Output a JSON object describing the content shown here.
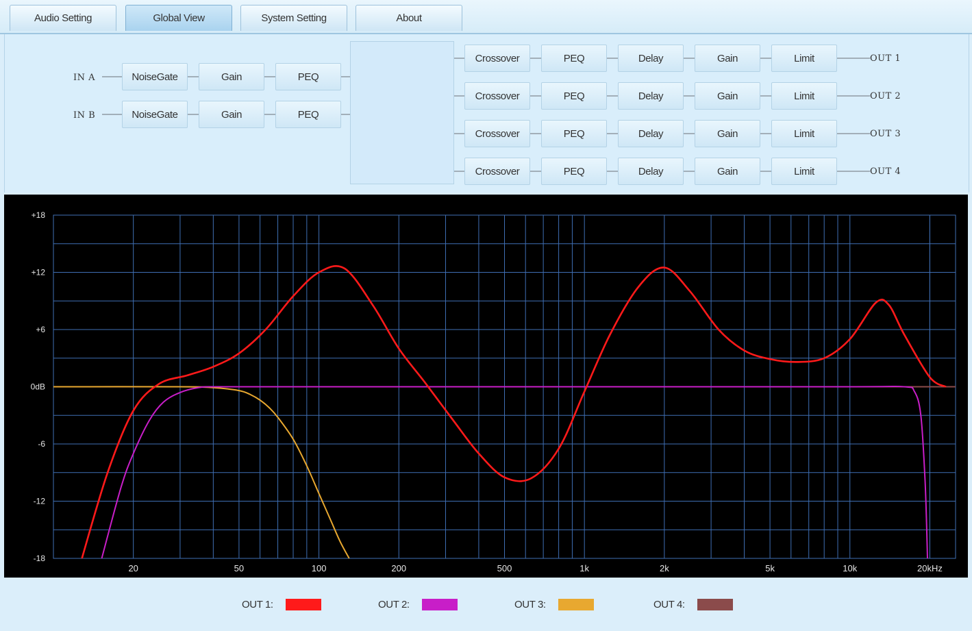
{
  "tabs": [
    {
      "label": "Audio Setting",
      "active": false
    },
    {
      "label": "Global View",
      "active": true
    },
    {
      "label": "System Setting",
      "active": false
    },
    {
      "label": "About",
      "active": false
    }
  ],
  "routing": {
    "inputs": [
      {
        "label": "IN A",
        "blocks": [
          "NoiseGate",
          "Gain",
          "PEQ"
        ]
      },
      {
        "label": "IN B",
        "blocks": [
          "NoiseGate",
          "Gain",
          "PEQ"
        ]
      }
    ],
    "outputs": [
      {
        "label": "OUT 1",
        "blocks": [
          "Crossover",
          "PEQ",
          "Delay",
          "Gain",
          "Limit"
        ]
      },
      {
        "label": "OUT 2",
        "blocks": [
          "Crossover",
          "PEQ",
          "Delay",
          "Gain",
          "Limit"
        ]
      },
      {
        "label": "OUT 3",
        "blocks": [
          "Crossover",
          "PEQ",
          "Delay",
          "Gain",
          "Limit"
        ]
      },
      {
        "label": "OUT 4",
        "blocks": [
          "Crossover",
          "PEQ",
          "Delay",
          "Gain",
          "Limit"
        ]
      }
    ],
    "matrix": {
      "rows": [
        "OUT 1",
        "OUT 2",
        "OUT 3",
        "OUT 4"
      ],
      "routes": [
        "IN A",
        "IN B",
        "IN A",
        "IN B"
      ]
    }
  },
  "chart_data": {
    "type": "line",
    "xscale": "log",
    "xlim": [
      10,
      25000
    ],
    "ylim": [
      -18,
      18
    ],
    "x_ticks": [
      {
        "value": 20,
        "label": "20"
      },
      {
        "value": 50,
        "label": "50"
      },
      {
        "value": 100,
        "label": "100"
      },
      {
        "value": 200,
        "label": "200"
      },
      {
        "value": 500,
        "label": "500"
      },
      {
        "value": 1000,
        "label": "1k"
      },
      {
        "value": 2000,
        "label": "2k"
      },
      {
        "value": 5000,
        "label": "5k"
      },
      {
        "value": 10000,
        "label": "10k"
      },
      {
        "value": 20000,
        "label": "20kHz"
      }
    ],
    "y_ticks": [
      {
        "value": 18,
        "label": "+18"
      },
      {
        "value": 12,
        "label": "+12"
      },
      {
        "value": 6,
        "label": "+6"
      },
      {
        "value": 0,
        "label": "0dB"
      },
      {
        "value": -6,
        "label": "-6"
      },
      {
        "value": -12,
        "label": "-12"
      },
      {
        "value": -18,
        "label": "-18"
      }
    ],
    "grid": true,
    "series": [
      {
        "name": "OUT 1",
        "color": "#ff1a1a",
        "x": [
          12.8,
          16,
          20,
          25,
          32,
          40,
          50,
          63,
          80,
          100,
          125,
          160,
          200,
          250,
          320,
          400,
          500,
          630,
          800,
          1000,
          1250,
          1600,
          2000,
          2500,
          3200,
          4000,
          5000,
          6300,
          8000,
          10000,
          12500,
          14000,
          16000,
          20000,
          23000
        ],
        "y": [
          -18,
          -9,
          -2.5,
          0.3,
          1.2,
          2.1,
          3.5,
          6.0,
          9.5,
          12.0,
          12.4,
          8.5,
          4.0,
          0.5,
          -3.5,
          -7.0,
          -9.5,
          -9.6,
          -6.5,
          -0.5,
          5.5,
          10.5,
          12.5,
          10.0,
          6.0,
          3.8,
          2.9,
          2.6,
          3.0,
          5.0,
          8.8,
          8.6,
          5.5,
          1.0,
          0
        ]
      },
      {
        "name": "OUT 2",
        "color": "#c81ec8",
        "x": [
          15.2,
          18,
          20,
          23,
          26,
          30,
          35,
          40,
          60,
          100,
          1000,
          10000,
          16000,
          17500,
          18500,
          19200,
          19600
        ],
        "y": [
          -18,
          -10.5,
          -7.0,
          -3.5,
          -1.6,
          -0.6,
          -0.1,
          0,
          0,
          0,
          0,
          0,
          0,
          -0.5,
          -3.0,
          -10.0,
          -18
        ]
      },
      {
        "name": "OUT 3",
        "color": "#e8a830",
        "x": [
          10,
          30,
          40,
          50,
          55,
          60,
          65,
          70,
          80,
          90,
          100,
          110,
          120,
          130
        ],
        "y": [
          0,
          0,
          -0.1,
          -0.4,
          -0.8,
          -1.4,
          -2.2,
          -3.2,
          -5.5,
          -8.3,
          -11.2,
          -13.8,
          -16.2,
          -18
        ]
      },
      {
        "name": "OUT 4",
        "color": "#8b4b4b",
        "x": [
          10,
          25000
        ],
        "y": [
          0,
          0
        ]
      }
    ],
    "legend": {
      "position": "bottom"
    }
  }
}
